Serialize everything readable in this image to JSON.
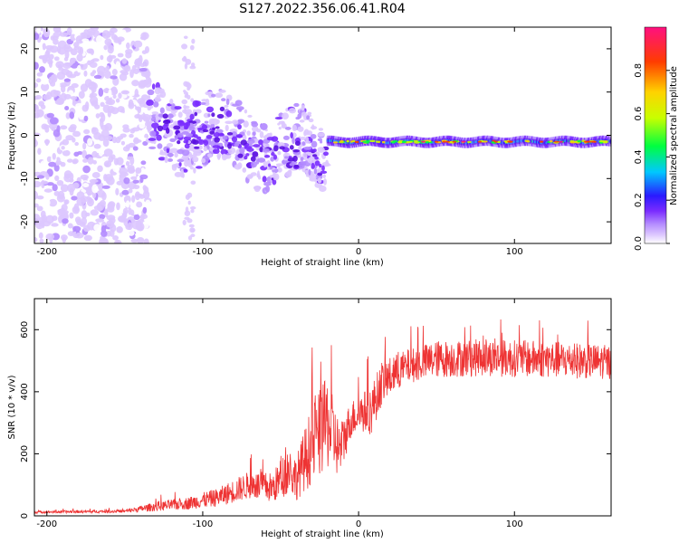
{
  "title": "S127.2022.356.06.41.R04",
  "chart_data": [
    {
      "type": "heatmap",
      "xlabel": "Height of straight line (km)",
      "ylabel": "Frequency (Hz)",
      "xlim": [
        -208,
        162
      ],
      "ylim": [
        -25,
        25
      ],
      "xticks": [
        -200,
        -100,
        0,
        100
      ],
      "yticks": [
        -20,
        -10,
        0,
        10,
        20
      ],
      "colorbar": {
        "label": "Normalized spectral amplitude",
        "range": [
          0,
          1
        ],
        "ticks": [
          "0.0",
          "0.2",
          "0.4",
          "0.6",
          "0.8"
        ],
        "tick_values": [
          0.0,
          0.2,
          0.4,
          0.6,
          0.8
        ],
        "colors": [
          "#ffffff",
          "#ddc8ff",
          "#b48cff",
          "#7a2cff",
          "#5a10e0",
          "#1a1aff",
          "#00c8ff",
          "#00ff40",
          "#c8ff00",
          "#ffd200",
          "#ff3c00",
          "#ff1080"
        ]
      },
      "features": {
        "noise_region_x": [
          -208,
          -135
        ],
        "sparse_region_x": [
          -135,
          -20
        ],
        "signal_start_x": -20,
        "signal_frequency_hz": -1.5
      }
    },
    {
      "type": "line",
      "xlabel": "Height of straight line (km)",
      "ylabel": "SNR (10 * v/v)",
      "xlim": [
        -208,
        162
      ],
      "ylim": [
        0,
        700
      ],
      "xticks": [
        -200,
        -100,
        0,
        100
      ],
      "yticks": [
        0,
        200,
        400,
        600
      ],
      "color": "#ee3333",
      "profile": {
        "x": [
          -208,
          -150,
          -130,
          -110,
          -90,
          -70,
          -55,
          -45,
          -40,
          -30,
          -20,
          -12,
          -5,
          0,
          8,
          15,
          30,
          50,
          80,
          120,
          162
        ],
        "mean": [
          12,
          15,
          30,
          40,
          60,
          100,
          90,
          150,
          120,
          230,
          300,
          210,
          310,
          330,
          340,
          430,
          480,
          505,
          510,
          505,
          495
        ],
        "spread": [
          4,
          5,
          15,
          20,
          30,
          45,
          50,
          80,
          70,
          130,
          150,
          90,
          60,
          60,
          80,
          70,
          55,
          60,
          60,
          60,
          55
        ]
      }
    }
  ]
}
